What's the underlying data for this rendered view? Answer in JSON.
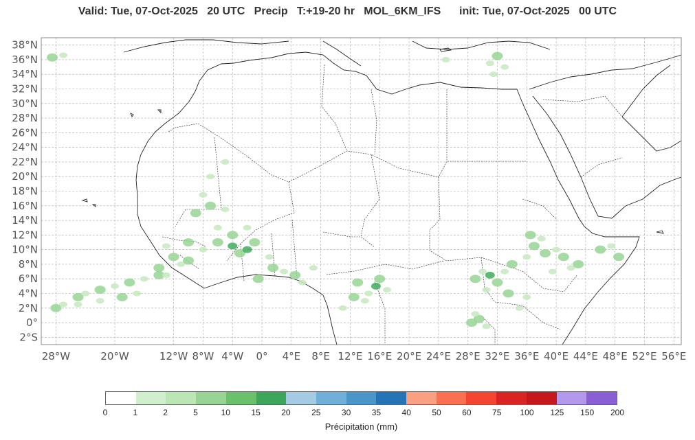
{
  "header": {
    "title": "Valid: Tue, 07-Oct-2025   20 UTC   Precip   T:+19-20 hr   MOL_6KM_IFS      init: Tue, 07-Oct-2025   00 UTC"
  },
  "map": {
    "lon_range": [
      -30,
      57
    ],
    "lat_range": [
      -3,
      39
    ],
    "lat_ticks": [
      "38°N",
      "36°N",
      "34°N",
      "32°N",
      "30°N",
      "28°N",
      "26°N",
      "24°N",
      "22°N",
      "20°N",
      "18°N",
      "16°N",
      "14°N",
      "12°N",
      "10°N",
      "8°N",
      "6°N",
      "4°N",
      "2°N",
      "0°",
      "2°S"
    ],
    "lon_ticks": [
      "28°W",
      "20°W",
      "12°W",
      "8°W",
      "4°W",
      "0°",
      "4°E",
      "8°E",
      "12°E",
      "16°E",
      "20°E",
      "24°E",
      "28°E",
      "32°E",
      "36°E",
      "40°E",
      "44°E",
      "48°E",
      "52°E",
      "56°E"
    ],
    "grid": true,
    "coast_color": "#222222",
    "precip_color_light": "#c7e9c0",
    "precip_color_dark": "#41ab5d"
  },
  "colorbar": {
    "colors": [
      "#ffffff",
      "#d0efcc",
      "#bde6b5",
      "#98d594",
      "#6bc06c",
      "#3da65a",
      "#a4cbe4",
      "#6fafd8",
      "#4a96c9",
      "#2474b6",
      "#fb9f83",
      "#fb7050",
      "#f3452f",
      "#da2323",
      "#c5171c",
      "#b398ec",
      "#8a5fd6",
      "#4b0088"
    ],
    "ticks": [
      "0",
      "1",
      "2",
      "5",
      "10",
      "15",
      "20",
      "25",
      "30",
      "35",
      "40",
      "50",
      "60",
      "75",
      "100",
      "125",
      "150",
      "200"
    ],
    "label": "Précipitation (mm)"
  }
}
